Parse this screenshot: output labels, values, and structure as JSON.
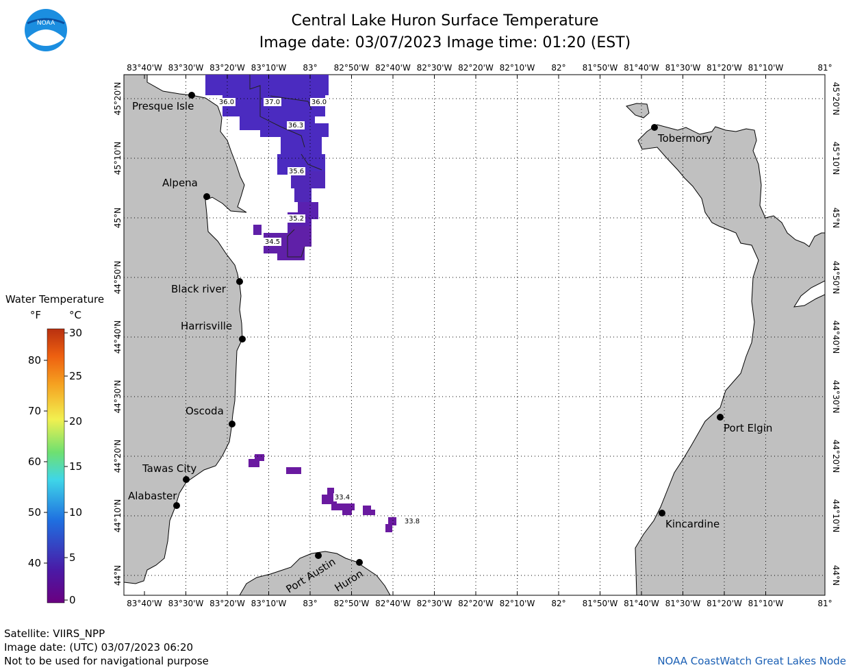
{
  "title": "Central Lake Huron Surface Temperature",
  "subtitle": "Image date: 03/07/2023     Image time: 01:20 (EST)",
  "footer": {
    "satellite": "Satellite: VIIRS_NPP",
    "utc_date": "Image date: (UTC) 03/07/2023  06:20",
    "disclaimer": "Not to be used for navigational purpose",
    "credit": "NOAA CoastWatch Great Lakes Node"
  },
  "logo_text": "NOAA",
  "legend": {
    "title": "Water Temperature",
    "unit_f": "°F",
    "unit_c": "°C",
    "f_ticks": [
      "80",
      "70",
      "60",
      "50",
      "40"
    ],
    "c_ticks": [
      "30",
      "25",
      "20",
      "15",
      "10",
      "5",
      "0"
    ],
    "colors": [
      "#6a0080",
      "#4a1aa6",
      "#1f6fe0",
      "#3fd6e8",
      "#6fe070",
      "#f2f050",
      "#f5a020",
      "#ee6010",
      "#b83010"
    ]
  },
  "axes": {
    "lon_ticks": [
      "83°40'W",
      "83°30'W",
      "83°20'W",
      "83°10'W",
      "83°",
      "82°50'W",
      "82°40'W",
      "82°30'W",
      "82°20'W",
      "82°10'W",
      "82°",
      "81°50'W",
      "81°40'W",
      "81°30'W",
      "81°20'W",
      "81°10'W",
      "81°"
    ],
    "lat_ticks": [
      "45°20'N",
      "45°10'N",
      "45°N",
      "44°50'N",
      "44°40'N",
      "44°30'N",
      "44°20'N",
      "44°10'N",
      "44°N"
    ]
  },
  "cities": [
    {
      "name": "Presque Isle"
    },
    {
      "name": "Alpena"
    },
    {
      "name": "Black river"
    },
    {
      "name": "Harrisville"
    },
    {
      "name": "Oscoda"
    },
    {
      "name": "Tawas City"
    },
    {
      "name": "Alabaster"
    },
    {
      "name": "Port Austin"
    },
    {
      "name": "Huron"
    },
    {
      "name": "Tobermory"
    },
    {
      "name": "Port Elgin"
    },
    {
      "name": "Kincardine"
    }
  ],
  "temp_labels": [
    "36.0",
    "37.0",
    "36.0",
    "36.3",
    "35.6",
    "35.2",
    "34.5",
    "33.4",
    "33.8"
  ],
  "colors": {
    "land": "#c0c0c0",
    "water": "#ffffff",
    "temp_cold": "#6a1aa0",
    "temp_mid": "#4b2bc0",
    "credit": "#1a5fb4"
  }
}
